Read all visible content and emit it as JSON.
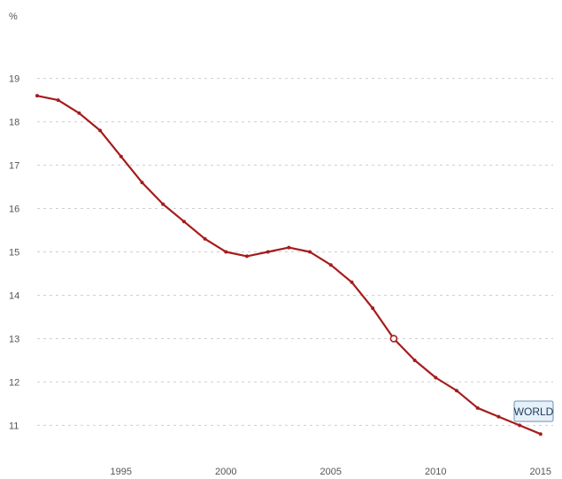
{
  "chart_data": {
    "type": "line",
    "unit_label": "%",
    "ylim": [
      10.6,
      19.4
    ],
    "yticks": [
      11,
      12,
      13,
      14,
      15,
      16,
      17,
      18,
      19
    ],
    "xlim": [
      1991,
      2015.6
    ],
    "xticks": [
      1995,
      2000,
      2005,
      2010,
      2015
    ],
    "grid": true,
    "colors": {
      "series": "#a51c1c",
      "grid": "#cfcfcf",
      "legend_fill": "#e6f0f8",
      "legend_border": "#6b8fb5"
    },
    "highlight_x": 2008,
    "series": [
      {
        "name": "WORLD",
        "x": [
          1991,
          1992,
          1993,
          1994,
          1995,
          1996,
          1997,
          1998,
          1999,
          2000,
          2001,
          2002,
          2003,
          2004,
          2005,
          2006,
          2007,
          2008,
          2009,
          2010,
          2011,
          2012,
          2013,
          2014,
          2015
        ],
        "values": [
          18.6,
          18.5,
          18.2,
          17.8,
          17.2,
          16.6,
          16.1,
          15.7,
          15.3,
          15.0,
          14.9,
          15.0,
          15.1,
          15.0,
          14.7,
          14.3,
          13.7,
          13.0,
          12.5,
          12.1,
          11.8,
          11.4,
          11.2,
          11.0,
          10.8
        ]
      }
    ]
  }
}
